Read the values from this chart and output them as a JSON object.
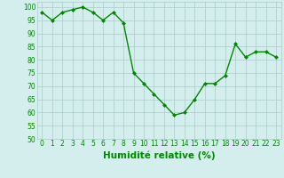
{
  "x": [
    0,
    1,
    2,
    3,
    4,
    5,
    6,
    7,
    8,
    9,
    10,
    11,
    12,
    13,
    14,
    15,
    16,
    17,
    18,
    19,
    20,
    21,
    22,
    23
  ],
  "y": [
    98,
    95,
    98,
    99,
    100,
    98,
    95,
    98,
    94,
    75,
    71,
    67,
    63,
    59,
    60,
    65,
    71,
    71,
    74,
    86,
    81,
    83,
    83,
    81
  ],
  "line_color": "#008800",
  "marker": "D",
  "marker_size": 2,
  "bg_color": "#d4eeee",
  "grid_color": "#aacccc",
  "xlabel": "Humidité relative (%)",
  "xlabel_color": "#008800",
  "ylim": [
    50,
    102
  ],
  "yticks": [
    50,
    55,
    60,
    65,
    70,
    75,
    80,
    85,
    90,
    95,
    100
  ],
  "xticks": [
    0,
    1,
    2,
    3,
    4,
    5,
    6,
    7,
    8,
    9,
    10,
    11,
    12,
    13,
    14,
    15,
    16,
    17,
    18,
    19,
    20,
    21,
    22,
    23
  ],
  "tick_label_fontsize": 5.5,
  "xlabel_fontsize": 7.5,
  "linewidth": 1.0
}
